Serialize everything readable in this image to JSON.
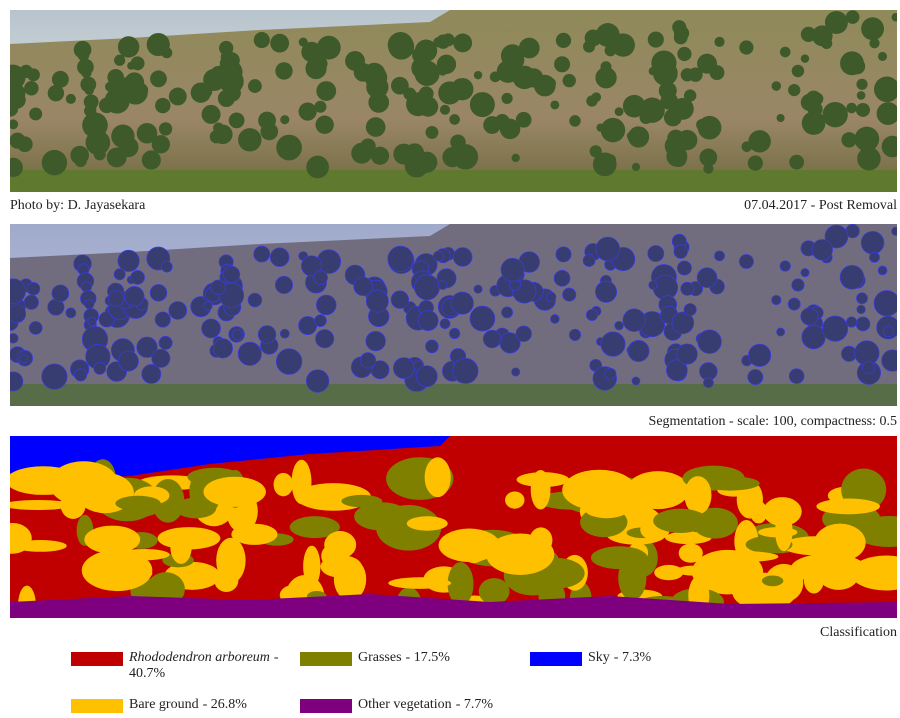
{
  "captions": {
    "credit": "Photo by: D. Jayasekara",
    "date": "07.04.2017 - Post Removal",
    "segmentation": "Segmentation - scale: 100, compactness: 0.5",
    "classification": "Classification"
  },
  "legend": [
    {
      "name": "Rhododendron arboreum",
      "suffix": "- 40.7%",
      "color": "#c00000"
    },
    {
      "name": "Grasses",
      "suffix": "- 17.5%",
      "color": "#808000"
    },
    {
      "name": "Sky",
      "suffix": "- 7.3%",
      "color": "#0000ff"
    },
    {
      "name": "Bare ground",
      "suffix": "- 26.8%",
      "color": "#ffc000"
    },
    {
      "name": "Other vegetation",
      "suffix": "- 7.7%",
      "color": "#7f007f"
    }
  ]
}
